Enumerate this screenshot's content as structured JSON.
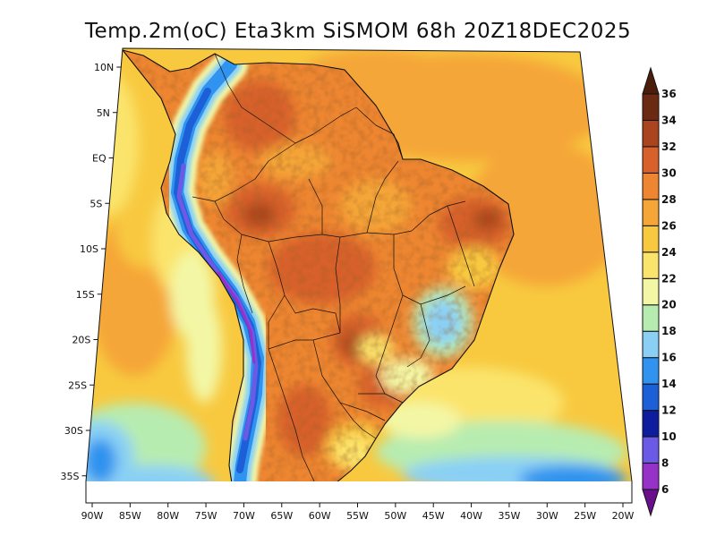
{
  "chart_data": {
    "type": "heatmap",
    "title": "Temp.2m(oC) Eta3km SiSMOM 68h 20Z18DEC2025",
    "variable": "Temp.2m",
    "units": "oC",
    "model": "Eta3km SiSMOM",
    "forecast_hour": "68h",
    "valid_time": "20Z18DEC2025",
    "xlim": [
      -90,
      -20
    ],
    "ylim": [
      -38,
      11
    ],
    "x_ticks": [
      {
        "value": -90,
        "label": "90W"
      },
      {
        "value": -85,
        "label": "85W"
      },
      {
        "value": -80,
        "label": "80W"
      },
      {
        "value": -75,
        "label": "75W"
      },
      {
        "value": -70,
        "label": "70W"
      },
      {
        "value": -65,
        "label": "65W"
      },
      {
        "value": -60,
        "label": "60W"
      },
      {
        "value": -55,
        "label": "55W"
      },
      {
        "value": -50,
        "label": "50W"
      },
      {
        "value": -45,
        "label": "45W"
      },
      {
        "value": -40,
        "label": "40W"
      },
      {
        "value": -35,
        "label": "35W"
      },
      {
        "value": -30,
        "label": "30W"
      },
      {
        "value": -25,
        "label": "25W"
      },
      {
        "value": -20,
        "label": "20W"
      }
    ],
    "y_ticks": [
      {
        "value": 10,
        "label": "10N"
      },
      {
        "value": 5,
        "label": "5N"
      },
      {
        "value": 0,
        "label": "EQ"
      },
      {
        "value": -5,
        "label": "5S"
      },
      {
        "value": -10,
        "label": "10S"
      },
      {
        "value": -15,
        "label": "15S"
      },
      {
        "value": -20,
        "label": "20S"
      },
      {
        "value": -25,
        "label": "25S"
      },
      {
        "value": -30,
        "label": "30S"
      },
      {
        "value": -35,
        "label": "35S"
      }
    ],
    "colorbar": {
      "levels": [
        6,
        8,
        10,
        12,
        14,
        16,
        18,
        20,
        22,
        24,
        26,
        28,
        30,
        32,
        34,
        36
      ],
      "colors": [
        "#6a0f8c",
        "#9632c8",
        "#6a5ae6",
        "#0e1d9e",
        "#1c5fd6",
        "#2f93ef",
        "#8ad0f5",
        "#b7ecb0",
        "#f3f7a5",
        "#fbe46c",
        "#f8c93f",
        "#f5a637",
        "#ee8631",
        "#d8602b",
        "#a9441f",
        "#6b2b12",
        "#4d1d0b"
      ]
    }
  }
}
